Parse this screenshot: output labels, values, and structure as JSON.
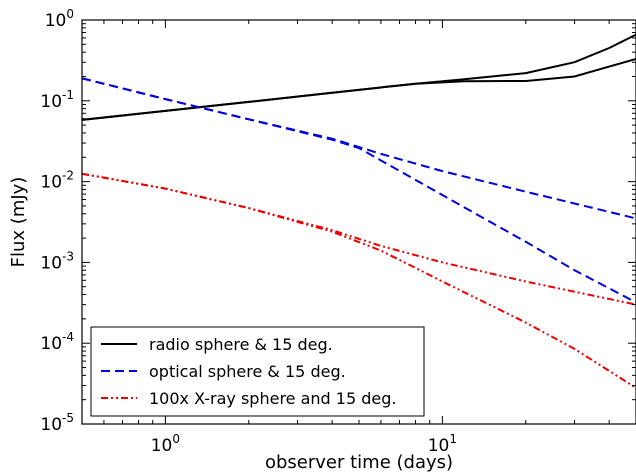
{
  "chart_data": {
    "type": "line",
    "title": "",
    "xlabel": "observer time (days)",
    "ylabel": "Flux (mJy)",
    "xscale": "log",
    "yscale": "log",
    "xlim": [
      0.5,
      50
    ],
    "ylim": [
      1e-05,
      1
    ],
    "grid": false,
    "legend_position": "lower-left",
    "x_ticks": [
      {
        "value": 1,
        "base": "10",
        "exp": "0"
      },
      {
        "value": 10,
        "base": "10",
        "exp": "1"
      }
    ],
    "y_ticks": [
      {
        "value": 1e-05,
        "base": "10",
        "exp": "-5"
      },
      {
        "value": 0.0001,
        "base": "10",
        "exp": "-4"
      },
      {
        "value": 0.001,
        "base": "10",
        "exp": "-3"
      },
      {
        "value": 0.01,
        "base": "10",
        "exp": "-2"
      },
      {
        "value": 0.1,
        "base": "10",
        "exp": "-1"
      },
      {
        "value": 1,
        "base": "10",
        "exp": "0"
      }
    ],
    "series": [
      {
        "name": "radio sphere & 15 deg.",
        "color": "#000000",
        "style": "solid",
        "curves": [
          {
            "x": [
              0.5,
              1,
              2,
              4,
              8,
              12,
              20,
              30,
              40,
              50
            ],
            "y": [
              0.058,
              0.075,
              0.097,
              0.126,
              0.163,
              0.185,
              0.22,
              0.3,
              0.45,
              0.66
            ]
          },
          {
            "x": [
              0.5,
              1,
              2,
              4,
              8,
              12,
              20,
              30,
              40,
              50
            ],
            "y": [
              0.058,
              0.075,
              0.097,
              0.126,
              0.163,
              0.175,
              0.176,
              0.2,
              0.265,
              0.33
            ]
          }
        ]
      },
      {
        "name": "optical sphere & 15 deg.",
        "color": "#0000dd",
        "style": "dashed",
        "curves": [
          {
            "x": [
              0.5,
              1,
              2,
              4,
              6,
              10,
              20,
              50
            ],
            "y": [
              0.19,
              0.105,
              0.059,
              0.034,
              0.022,
              0.0135,
              0.0075,
              0.0035
            ]
          },
          {
            "x": [
              0.5,
              1,
              2,
              4,
              5,
              8,
              12,
              20,
              30,
              50
            ],
            "y": [
              0.19,
              0.105,
              0.059,
              0.033,
              0.026,
              0.0105,
              0.0048,
              0.0018,
              0.0008,
              0.00032
            ]
          }
        ]
      },
      {
        "name": "100x X-ray sphere and 15 deg.",
        "color": "#ee0000",
        "style": "dashdot",
        "curves": [
          {
            "x": [
              0.5,
              1,
              2,
              4,
              6,
              10,
              20,
              50
            ],
            "y": [
              0.0125,
              0.0082,
              0.0047,
              0.0025,
              0.0016,
              0.001,
              0.00058,
              0.0003
            ]
          },
          {
            "x": [
              0.5,
              1,
              2,
              4,
              6,
              10,
              20,
              30,
              50
            ],
            "y": [
              0.0125,
              0.0082,
              0.0047,
              0.0024,
              0.0014,
              0.00058,
              0.00018,
              8.5e-05,
              2.8e-05
            ]
          }
        ]
      }
    ]
  }
}
